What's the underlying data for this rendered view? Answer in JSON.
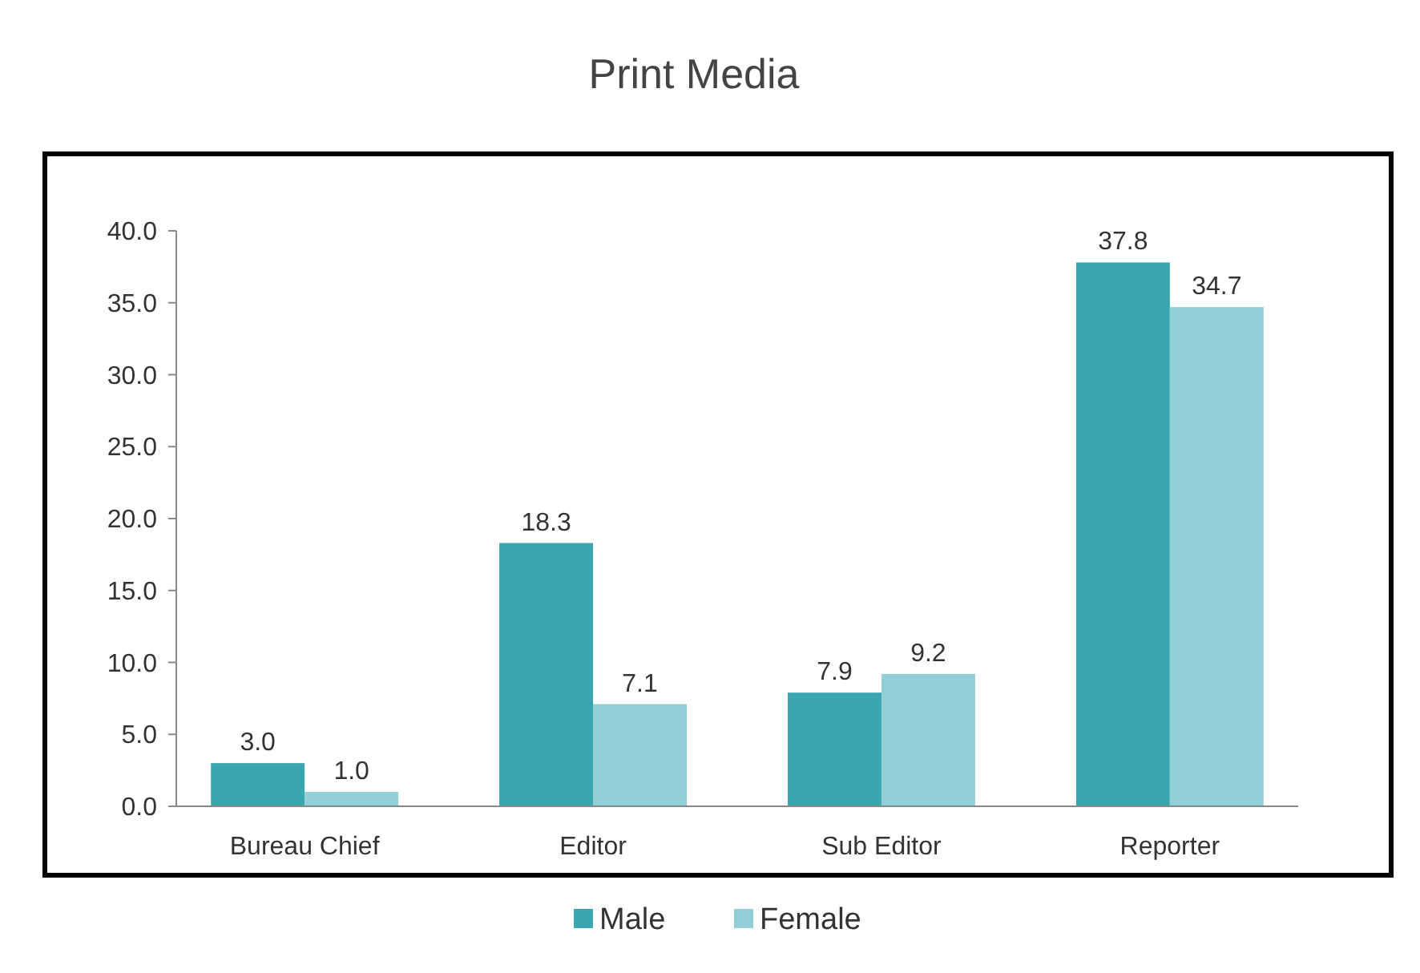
{
  "chart_data": {
    "type": "bar",
    "title": "Print Media",
    "categories": [
      "Bureau Chief",
      "Editor",
      "Sub Editor",
      "Reporter"
    ],
    "series": [
      {
        "name": "Male",
        "color": "#3aa6b0",
        "values": [
          3.0,
          18.3,
          7.9,
          37.8
        ],
        "value_labels": [
          "3.0",
          "18.3",
          "7.9",
          "37.8"
        ]
      },
      {
        "name": "Female",
        "color": "#92cfd6",
        "values": [
          1.0,
          7.1,
          9.2,
          34.7
        ],
        "value_labels": [
          "1.0",
          "7.1",
          "9.2",
          "34.7"
        ]
      }
    ],
    "ylim": [
      0,
      40
    ],
    "yticks": [
      {
        "value": 0,
        "label": "0.0"
      },
      {
        "value": 5,
        "label": "5.0"
      },
      {
        "value": 10,
        "label": "10.0"
      },
      {
        "value": 15,
        "label": "15.0"
      },
      {
        "value": 20,
        "label": "20.0"
      },
      {
        "value": 25,
        "label": "25.0"
      },
      {
        "value": 30,
        "label": "30.0"
      },
      {
        "value": 35,
        "label": "35.0"
      },
      {
        "value": 40,
        "label": "40.0"
      }
    ],
    "grid": false,
    "legend": "bottom"
  }
}
